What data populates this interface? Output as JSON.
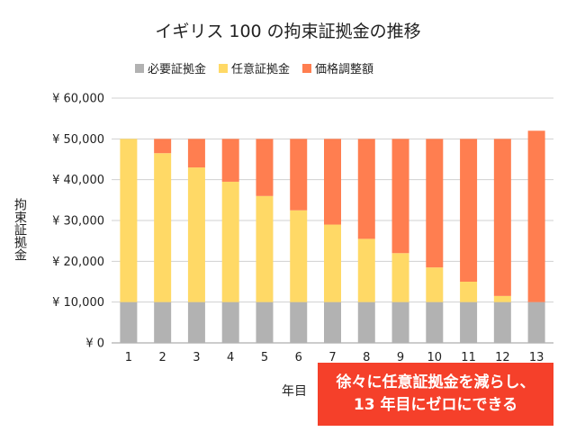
{
  "chart_data": {
    "type": "bar",
    "stacked": true,
    "title": "イギリス 100 の拘束証拠金の推移",
    "xlabel": "年目",
    "ylabel": "拘束証拠金",
    "categories": [
      "1",
      "2",
      "3",
      "4",
      "5",
      "6",
      "7",
      "8",
      "9",
      "10",
      "11",
      "12",
      "13"
    ],
    "ylim": [
      0,
      60000
    ],
    "yticks": [
      0,
      10000,
      20000,
      30000,
      40000,
      50000,
      60000
    ],
    "ytick_labels": [
      "¥ 0",
      "¥ 10,000",
      "¥ 20,000",
      "¥ 30,000",
      "¥ 40,000",
      "¥ 50,000",
      "¥ 60,000"
    ],
    "grid": true,
    "legend_position": "top",
    "series": [
      {
        "name": "必要証拠金",
        "color": "#b2b2b2",
        "values": [
          10000,
          10000,
          10000,
          10000,
          10000,
          10000,
          10000,
          10000,
          10000,
          10000,
          10000,
          10000,
          10000
        ]
      },
      {
        "name": "任意証拠金",
        "color": "#ffd966",
        "values": [
          40000,
          36500,
          33000,
          29500,
          26000,
          22500,
          19000,
          15500,
          12000,
          8500,
          5000,
          1500,
          0
        ]
      },
      {
        "name": "価格調整額",
        "color": "#ff7e50",
        "values": [
          0,
          3500,
          7000,
          10500,
          14000,
          17500,
          21000,
          24500,
          28000,
          31500,
          35000,
          38500,
          42000
        ]
      }
    ]
  },
  "callout": {
    "line1": "徐々に任意証拠金を減らし、",
    "line2": "13 年目にゼロにできる",
    "color": "#f5402a"
  }
}
